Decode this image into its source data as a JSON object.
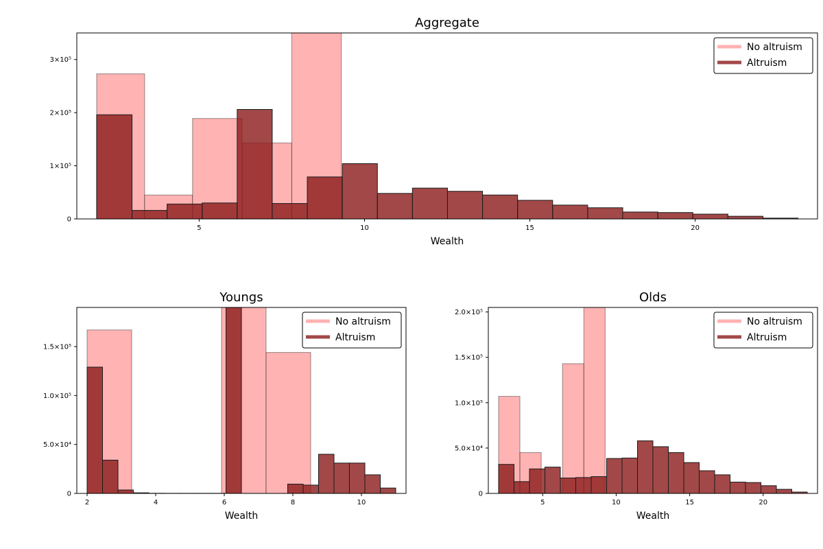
{
  "colors": {
    "no_altruism": "#ff9999",
    "altruism": "#8b1a1a"
  },
  "chart_data": [
    {
      "type": "bar",
      "title": "Aggregate",
      "xlabel": "Wealth",
      "ylabel": "",
      "xlim": [
        1.3,
        23.7
      ],
      "ylim": [
        0,
        350000
      ],
      "xticks": [
        5,
        10,
        15,
        20
      ],
      "xtick_labels": [
        "5",
        "10",
        "15",
        "20"
      ],
      "yticks": [
        0,
        100000,
        200000,
        300000
      ],
      "ytick_labels": [
        "0",
        "1×10⁵",
        "2×10⁵",
        "3×10⁵"
      ],
      "legend": {
        "position": "top-right",
        "entries": [
          "No altruism",
          "Altruism"
        ]
      },
      "series": [
        {
          "name": "No altruism",
          "bins": [
            {
              "x0": 1.9,
              "x1": 3.35,
              "value": 273000
            },
            {
              "x0": 3.35,
              "x1": 4.8,
              "value": 45000
            },
            {
              "x0": 4.8,
              "x1": 6.3,
              "value": 189000
            },
            {
              "x0": 6.3,
              "x1": 7.8,
              "value": 143000
            },
            {
              "x0": 7.8,
              "x1": 9.3,
              "value": 350000
            }
          ]
        },
        {
          "name": "Altruism",
          "bins": [
            {
              "x0": 1.9,
              "x1": 2.97,
              "value": 196000
            },
            {
              "x0": 2.97,
              "x1": 4.03,
              "value": 16000
            },
            {
              "x0": 4.03,
              "x1": 5.09,
              "value": 28000
            },
            {
              "x0": 5.09,
              "x1": 6.15,
              "value": 30000
            },
            {
              "x0": 6.15,
              "x1": 7.21,
              "value": 206000
            },
            {
              "x0": 7.21,
              "x1": 8.27,
              "value": 29000
            },
            {
              "x0": 8.27,
              "x1": 9.33,
              "value": 79000
            },
            {
              "x0": 9.33,
              "x1": 10.39,
              "value": 104000
            },
            {
              "x0": 10.39,
              "x1": 11.45,
              "value": 48000
            },
            {
              "x0": 11.45,
              "x1": 12.51,
              "value": 58000
            },
            {
              "x0": 12.51,
              "x1": 13.57,
              "value": 52000
            },
            {
              "x0": 13.57,
              "x1": 14.63,
              "value": 45000
            },
            {
              "x0": 14.63,
              "x1": 15.69,
              "value": 35000
            },
            {
              "x0": 15.69,
              "x1": 16.75,
              "value": 26000
            },
            {
              "x0": 16.75,
              "x1": 17.81,
              "value": 21000
            },
            {
              "x0": 17.81,
              "x1": 18.87,
              "value": 13000
            },
            {
              "x0": 18.87,
              "x1": 19.93,
              "value": 12000
            },
            {
              "x0": 19.93,
              "x1": 20.99,
              "value": 9000
            },
            {
              "x0": 20.99,
              "x1": 22.05,
              "value": 5000
            },
            {
              "x0": 22.05,
              "x1": 23.11,
              "value": 1500
            }
          ]
        }
      ]
    },
    {
      "type": "bar",
      "title": "Youngs",
      "xlabel": "Wealth",
      "ylabel": "",
      "xlim": [
        1.7,
        11.3
      ],
      "ylim": [
        0,
        190000
      ],
      "xticks": [
        2,
        4,
        6,
        8,
        10
      ],
      "xtick_labels": [
        "2",
        "4",
        "6",
        "8",
        "10"
      ],
      "yticks": [
        0,
        50000,
        100000,
        150000
      ],
      "ytick_labels": [
        "0",
        "5.0×10⁴",
        "1.0×10⁵",
        "1.5×10⁵"
      ],
      "legend": {
        "position": "top-right",
        "entries": [
          "No altruism",
          "Altruism"
        ]
      },
      "series": [
        {
          "name": "No altruism",
          "bins": [
            {
              "x0": 2.0,
              "x1": 3.3,
              "value": 167000
            },
            {
              "x0": 5.92,
              "x1": 7.22,
              "value": 190000
            },
            {
              "x0": 7.22,
              "x1": 8.52,
              "value": 144000
            }
          ]
        },
        {
          "name": "Altruism",
          "bins": [
            {
              "x0": 2.0,
              "x1": 2.45,
              "value": 129000
            },
            {
              "x0": 2.45,
              "x1": 2.9,
              "value": 34000
            },
            {
              "x0": 2.9,
              "x1": 3.35,
              "value": 3500
            },
            {
              "x0": 3.35,
              "x1": 3.8,
              "value": 600
            },
            {
              "x0": 3.8,
              "x1": 4.25,
              "value": 150
            },
            {
              "x0": 4.25,
              "x1": 4.7,
              "value": 100
            },
            {
              "x0": 4.7,
              "x1": 5.15,
              "value": 100
            },
            {
              "x0": 5.15,
              "x1": 5.6,
              "value": 100
            },
            {
              "x0": 5.6,
              "x1": 6.05,
              "value": 100
            },
            {
              "x0": 6.05,
              "x1": 6.5,
              "value": 190000
            },
            {
              "x0": 7.85,
              "x1": 8.3,
              "value": 9500
            },
            {
              "x0": 8.3,
              "x1": 8.75,
              "value": 8500
            },
            {
              "x0": 8.75,
              "x1": 9.2,
              "value": 40000
            },
            {
              "x0": 9.2,
              "x1": 9.65,
              "value": 31000
            },
            {
              "x0": 9.65,
              "x1": 10.1,
              "value": 31000
            },
            {
              "x0": 10.1,
              "x1": 10.55,
              "value": 19000
            },
            {
              "x0": 10.55,
              "x1": 11.0,
              "value": 5500
            }
          ]
        }
      ]
    },
    {
      "type": "bar",
      "title": "Olds",
      "xlabel": "Wealth",
      "ylabel": "",
      "xlim": [
        1.3,
        23.7
      ],
      "ylim": [
        0,
        205000
      ],
      "xticks": [
        5,
        10,
        15,
        20
      ],
      "xtick_labels": [
        "5",
        "10",
        "15",
        "20"
      ],
      "yticks": [
        0,
        50000,
        100000,
        150000,
        200000
      ],
      "ytick_labels": [
        "0",
        "5.0×10⁴",
        "1.0×10⁵",
        "1.5×10⁵",
        "2.0×10⁵"
      ],
      "legend": {
        "position": "top-right",
        "entries": [
          "No altruism",
          "Altruism"
        ]
      },
      "series": [
        {
          "name": "No altruism",
          "bins": [
            {
              "x0": 2.0,
              "x1": 3.45,
              "value": 107000
            },
            {
              "x0": 3.45,
              "x1": 4.9,
              "value": 45000
            },
            {
              "x0": 6.35,
              "x1": 7.8,
              "value": 143000
            },
            {
              "x0": 7.8,
              "x1": 9.25,
              "value": 205000
            }
          ]
        },
        {
          "name": "Altruism",
          "bins": [
            {
              "x0": 2.0,
              "x1": 3.05,
              "value": 32000
            },
            {
              "x0": 3.05,
              "x1": 4.1,
              "value": 13000
            },
            {
              "x0": 4.1,
              "x1": 5.15,
              "value": 27000
            },
            {
              "x0": 5.15,
              "x1": 6.2,
              "value": 29000
            },
            {
              "x0": 6.2,
              "x1": 7.25,
              "value": 17000
            },
            {
              "x0": 7.25,
              "x1": 8.3,
              "value": 17500
            },
            {
              "x0": 8.3,
              "x1": 9.35,
              "value": 18500
            },
            {
              "x0": 9.35,
              "x1": 10.4,
              "value": 38500
            },
            {
              "x0": 10.4,
              "x1": 11.45,
              "value": 39000
            },
            {
              "x0": 11.45,
              "x1": 12.5,
              "value": 58000
            },
            {
              "x0": 12.5,
              "x1": 13.55,
              "value": 51500
            },
            {
              "x0": 13.55,
              "x1": 14.6,
              "value": 45000
            },
            {
              "x0": 14.6,
              "x1": 15.65,
              "value": 34000
            },
            {
              "x0": 15.65,
              "x1": 16.7,
              "value": 25000
            },
            {
              "x0": 16.7,
              "x1": 17.75,
              "value": 20500
            },
            {
              "x0": 17.75,
              "x1": 18.8,
              "value": 12500
            },
            {
              "x0": 18.8,
              "x1": 19.85,
              "value": 12000
            },
            {
              "x0": 19.85,
              "x1": 20.9,
              "value": 8500
            },
            {
              "x0": 20.9,
              "x1": 21.95,
              "value": 4500
            },
            {
              "x0": 21.95,
              "x1": 23.0,
              "value": 1500
            }
          ]
        }
      ]
    }
  ]
}
